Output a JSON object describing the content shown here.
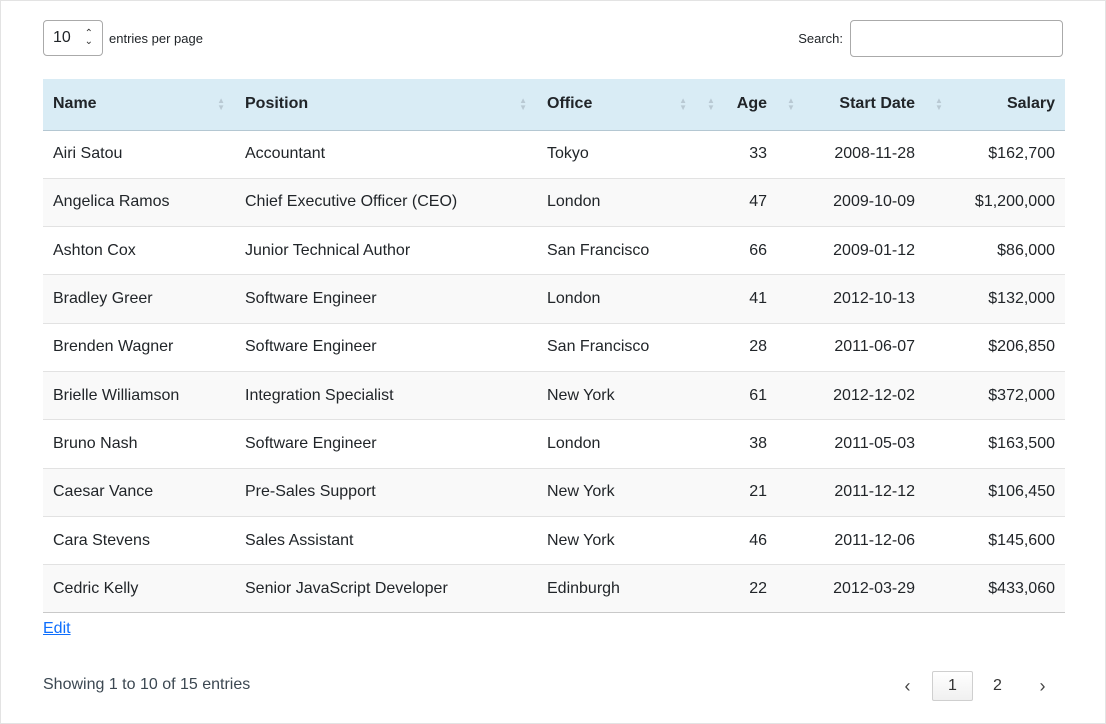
{
  "length": {
    "value": "10",
    "label": "entries per page"
  },
  "search": {
    "label": "Search:",
    "value": "",
    "placeholder": ""
  },
  "table": {
    "columns": [
      "Name",
      "Position",
      "Office",
      "Age",
      "Start Date",
      "Salary"
    ],
    "rows": [
      [
        "Airi Satou",
        "Accountant",
        "Tokyo",
        "33",
        "2008-11-28",
        "$162,700"
      ],
      [
        "Angelica Ramos",
        "Chief Executive Officer (CEO)",
        "London",
        "47",
        "2009-10-09",
        "$1,200,000"
      ],
      [
        "Ashton Cox",
        "Junior Technical Author",
        "San Francisco",
        "66",
        "2009-01-12",
        "$86,000"
      ],
      [
        "Bradley Greer",
        "Software Engineer",
        "London",
        "41",
        "2012-10-13",
        "$132,000"
      ],
      [
        "Brenden Wagner",
        "Software Engineer",
        "San Francisco",
        "28",
        "2011-06-07",
        "$206,850"
      ],
      [
        "Brielle Williamson",
        "Integration Specialist",
        "New York",
        "61",
        "2012-12-02",
        "$372,000"
      ],
      [
        "Bruno Nash",
        "Software Engineer",
        "London",
        "38",
        "2011-05-03",
        "$163,500"
      ],
      [
        "Caesar Vance",
        "Pre-Sales Support",
        "New York",
        "21",
        "2011-12-12",
        "$106,450"
      ],
      [
        "Cara Stevens",
        "Sales Assistant",
        "New York",
        "46",
        "2011-12-06",
        "$145,600"
      ],
      [
        "Cedric Kelly",
        "Senior JavaScript Developer",
        "Edinburgh",
        "22",
        "2012-03-29",
        "$433,060"
      ]
    ]
  },
  "edit_link": "Edit",
  "info": "Showing 1 to 10 of 15 entries",
  "pagination": {
    "prev": "‹",
    "pages": [
      "1",
      "2"
    ],
    "current": "1",
    "next": "›"
  }
}
